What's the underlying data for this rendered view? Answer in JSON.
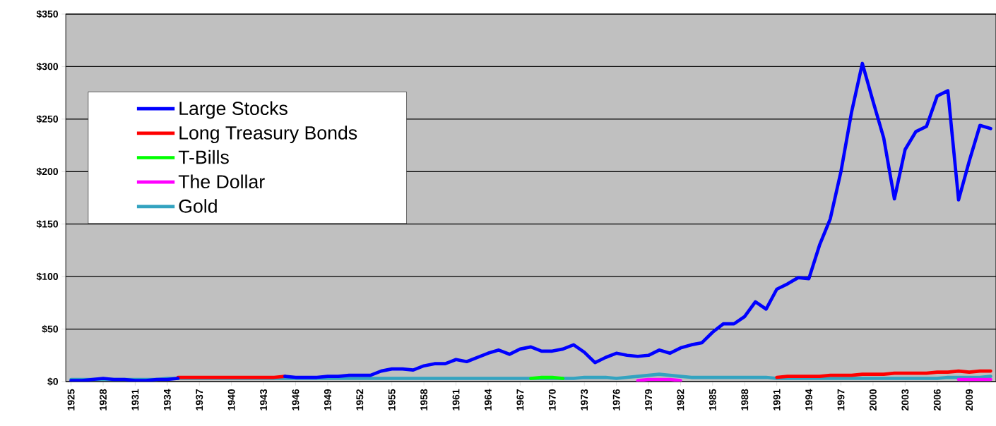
{
  "chart_data": {
    "type": "line",
    "x": [
      1925,
      1926,
      1927,
      1928,
      1929,
      1930,
      1931,
      1932,
      1933,
      1934,
      1935,
      1936,
      1937,
      1938,
      1939,
      1940,
      1941,
      1942,
      1943,
      1944,
      1945,
      1946,
      1947,
      1948,
      1949,
      1950,
      1951,
      1952,
      1953,
      1954,
      1955,
      1956,
      1957,
      1958,
      1959,
      1960,
      1961,
      1962,
      1963,
      1964,
      1965,
      1966,
      1967,
      1968,
      1969,
      1970,
      1971,
      1972,
      1973,
      1974,
      1975,
      1976,
      1977,
      1978,
      1979,
      1980,
      1981,
      1982,
      1983,
      1984,
      1985,
      1986,
      1987,
      1988,
      1989,
      1990,
      1991,
      1992,
      1993,
      1994,
      1995,
      1996,
      1997,
      1998,
      1999,
      2000,
      2001,
      2002,
      2003,
      2004,
      2005,
      2006,
      2007,
      2008,
      2009,
      2010,
      2011
    ],
    "series": [
      {
        "name": "Large Stocks",
        "color": "#0000ff",
        "values": [
          1,
          1,
          2,
          3,
          2,
          2,
          1,
          1,
          2,
          2,
          3,
          null,
          null,
          null,
          null,
          null,
          null,
          null,
          null,
          null,
          5,
          4,
          4,
          4,
          5,
          5,
          6,
          6,
          6,
          10,
          12,
          12,
          11,
          15,
          17,
          17,
          21,
          19,
          23,
          27,
          30,
          26,
          31,
          33,
          29,
          29,
          31,
          35,
          28,
          18,
          23,
          27,
          25,
          24,
          25,
          30,
          27,
          32,
          35,
          37,
          47,
          55,
          55,
          62,
          76,
          69,
          88,
          93,
          99,
          98,
          130,
          155,
          200,
          257,
          303,
          267,
          232,
          174,
          221,
          238,
          243,
          272,
          277,
          173,
          210,
          244,
          241
        ]
      },
      {
        "name": "Long Treasury Bonds",
        "color": "#ff0000",
        "values": [
          null,
          null,
          null,
          null,
          null,
          null,
          null,
          null,
          null,
          null,
          4,
          4,
          4,
          4,
          4,
          4,
          4,
          4,
          4,
          4,
          5,
          null,
          null,
          null,
          null,
          null,
          null,
          null,
          null,
          null,
          null,
          null,
          null,
          null,
          null,
          null,
          null,
          null,
          null,
          null,
          null,
          null,
          null,
          null,
          null,
          null,
          null,
          null,
          null,
          null,
          null,
          null,
          null,
          null,
          null,
          null,
          null,
          null,
          null,
          null,
          null,
          null,
          null,
          null,
          null,
          null,
          4,
          5,
          5,
          5,
          5,
          6,
          6,
          6,
          7,
          7,
          7,
          8,
          8,
          8,
          8,
          9,
          9,
          10,
          9,
          10,
          10
        ]
      },
      {
        "name": "T-Bills",
        "color": "#00ff00",
        "values": [
          null,
          null,
          null,
          null,
          null,
          null,
          null,
          null,
          null,
          null,
          null,
          null,
          null,
          null,
          null,
          null,
          null,
          null,
          null,
          null,
          null,
          null,
          null,
          null,
          null,
          null,
          null,
          null,
          null,
          null,
          null,
          null,
          null,
          null,
          null,
          null,
          null,
          null,
          null,
          null,
          null,
          null,
          null,
          3,
          4,
          4,
          3,
          null,
          null,
          null,
          null,
          null,
          null,
          null,
          null,
          null,
          null,
          null,
          null,
          null,
          null,
          null,
          null,
          null,
          null,
          null,
          null,
          null,
          null,
          null,
          null,
          null,
          null,
          null,
          null,
          null,
          null,
          null,
          null,
          null,
          null,
          null,
          null,
          null,
          null,
          null,
          null
        ]
      },
      {
        "name": "The Dollar",
        "color": "#ff00ff",
        "values": [
          null,
          null,
          null,
          null,
          null,
          null,
          null,
          null,
          null,
          null,
          null,
          null,
          null,
          null,
          null,
          null,
          null,
          null,
          null,
          null,
          null,
          null,
          null,
          null,
          null,
          null,
          null,
          null,
          null,
          null,
          null,
          null,
          null,
          null,
          null,
          null,
          null,
          null,
          null,
          null,
          null,
          null,
          null,
          null,
          null,
          null,
          null,
          null,
          null,
          null,
          null,
          null,
          null,
          1,
          2,
          2,
          2,
          1,
          null,
          null,
          null,
          null,
          null,
          null,
          null,
          null,
          null,
          null,
          null,
          null,
          null,
          null,
          null,
          null,
          null,
          null,
          null,
          null,
          null,
          null,
          null,
          null,
          null,
          2,
          2,
          2,
          2
        ]
      },
      {
        "name": "Gold",
        "color": "#33a3c0",
        "values": [
          2,
          2,
          2,
          2,
          2,
          2,
          2,
          2,
          2,
          3,
          3,
          3,
          3,
          3,
          3,
          3,
          3,
          3,
          3,
          3,
          3,
          3,
          3,
          3,
          3,
          3,
          3,
          3,
          3,
          3,
          3,
          3,
          3,
          3,
          3,
          3,
          3,
          3,
          3,
          3,
          3,
          3,
          3,
          3,
          3,
          3,
          3,
          3,
          4,
          4,
          4,
          3,
          4,
          5,
          6,
          7,
          6,
          5,
          4,
          4,
          4,
          4,
          4,
          4,
          4,
          4,
          3,
          3,
          3,
          3,
          3,
          3,
          3,
          3,
          3,
          3,
          3,
          3,
          3,
          3,
          3,
          3,
          4,
          4,
          4,
          4,
          5
        ]
      }
    ],
    "xlim": [
      1924.5,
      2011.5
    ],
    "xticks": [
      1925,
      1928,
      1931,
      1934,
      1937,
      1940,
      1943,
      1946,
      1949,
      1952,
      1955,
      1958,
      1961,
      1964,
      1967,
      1970,
      1973,
      1976,
      1979,
      1982,
      1985,
      1988,
      1991,
      1994,
      1997,
      2000,
      2003,
      2006,
      2009
    ],
    "ylim": [
      0,
      350
    ],
    "yticks": [
      {
        "value": 0,
        "label": "$0"
      },
      {
        "value": 50,
        "label": "$50"
      },
      {
        "value": 100,
        "label": "$100"
      },
      {
        "value": 150,
        "label": "$150"
      },
      {
        "value": 200,
        "label": "$200"
      },
      {
        "value": 250,
        "label": "$250"
      },
      {
        "value": 300,
        "label": "$300"
      },
      {
        "value": 350,
        "label": "$350"
      }
    ],
    "grid": "y",
    "legend": "left",
    "marker": "none",
    "line_style": "solid"
  }
}
